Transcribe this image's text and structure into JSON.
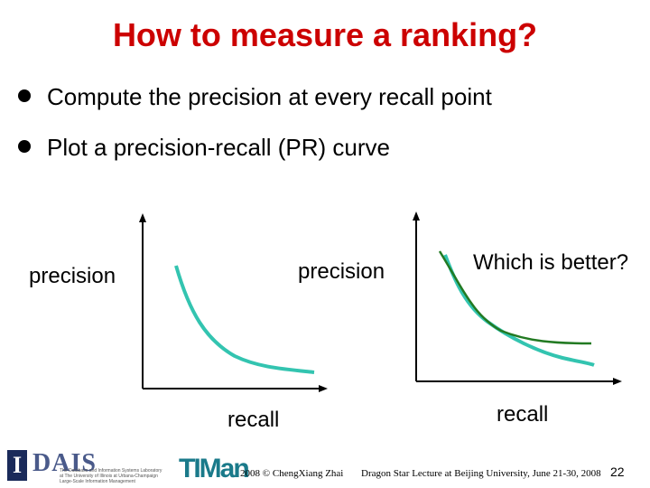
{
  "slide": {
    "title": "How to measure a ranking?",
    "bullets": [
      "Compute the precision at every recall point",
      "Plot a precision-recall (PR) curve"
    ]
  },
  "left_chart": {
    "ylabel": "precision",
    "xlabel": "recall"
  },
  "right_chart": {
    "ylabel": "precision",
    "xlabel": "recall",
    "question": "Which is better?"
  },
  "colors": {
    "title": "#cc0000",
    "curve_teal": "#33c4b0",
    "curve_green": "#227a22"
  },
  "footer": {
    "copyright": "2008 © ChengXiang Zhai",
    "event": "Dragon Star Lecture at Beijing University, June 21-30, 2008",
    "page": "22",
    "logo_i": "I",
    "logo_dais": "DAIS",
    "logo_dais_line1": "The Database and Information Systems Laboratory",
    "logo_dais_line2": "at The University of Illinois at Urbana-Champaign",
    "logo_dais_line3": "Large-Scale Information Management",
    "logo_timan": "TIMan"
  }
}
